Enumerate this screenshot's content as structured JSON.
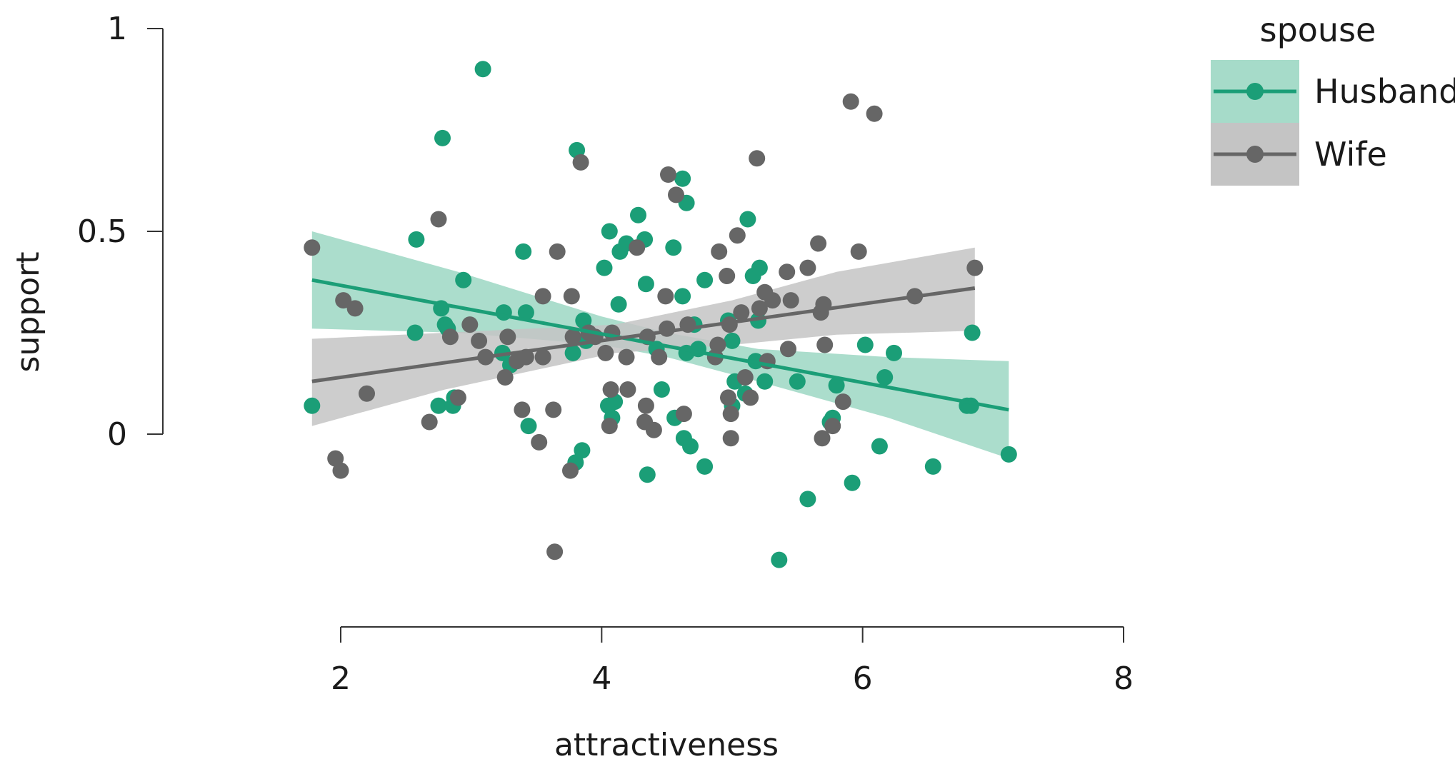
{
  "chart_data": {
    "type": "scatter",
    "title": "",
    "xlabel": "attractiveness",
    "ylabel": "support",
    "xlim": [
      1.3,
      8
    ],
    "ylim": [
      -0.45,
      1
    ],
    "x_ticks": [
      2,
      4,
      6,
      8
    ],
    "x_tick_labels": [
      "2",
      "4",
      "6",
      "8"
    ],
    "y_ticks": [
      0,
      0.5,
      1
    ],
    "y_tick_labels": [
      "0",
      "0.5",
      "1"
    ],
    "grid": false,
    "legend": {
      "title": "spouse",
      "placement": "top-right",
      "entries": [
        "Husband",
        "Wife"
      ]
    },
    "series": [
      {
        "name": "Husband",
        "color": "#1b9e77",
        "band_color": "#a6dbc9",
        "fit": {
          "x": [
            1.78,
            7.12
          ],
          "y": [
            0.38,
            0.06
          ]
        },
        "band": {
          "x": [
            1.78,
            2.9,
            4.0,
            4.5,
            5.2,
            6.2,
            7.12
          ],
          "upper": [
            0.5,
            0.4,
            0.29,
            0.25,
            0.21,
            0.19,
            0.18
          ],
          "lower": [
            0.26,
            0.25,
            0.22,
            0.19,
            0.13,
            0.04,
            -0.06
          ]
        },
        "points": [
          [
            1.78,
            0.07
          ],
          [
            2.58,
            0.48
          ],
          [
            2.57,
            0.25
          ],
          [
            2.77,
            0.31
          ],
          [
            2.78,
            0.73
          ],
          [
            2.8,
            0.27
          ],
          [
            2.82,
            0.26
          ],
          [
            2.75,
            0.07
          ],
          [
            2.86,
            0.07
          ],
          [
            2.87,
            0.09
          ],
          [
            2.94,
            0.38
          ],
          [
            3.09,
            0.9
          ],
          [
            3.25,
            0.3
          ],
          [
            3.24,
            0.2
          ],
          [
            3.3,
            0.17
          ],
          [
            3.4,
            0.45
          ],
          [
            3.42,
            0.3
          ],
          [
            3.44,
            0.02
          ],
          [
            3.81,
            0.7
          ],
          [
            3.8,
            -0.07
          ],
          [
            3.85,
            -0.04
          ],
          [
            3.86,
            0.28
          ],
          [
            3.88,
            0.23
          ],
          [
            3.78,
            0.2
          ],
          [
            4.02,
            0.41
          ],
          [
            4.06,
            0.5
          ],
          [
            4.05,
            0.07
          ],
          [
            4.08,
            0.04
          ],
          [
            4.1,
            0.08
          ],
          [
            4.13,
            0.32
          ],
          [
            4.14,
            0.45
          ],
          [
            4.19,
            0.47
          ],
          [
            4.28,
            0.54
          ],
          [
            4.33,
            0.48
          ],
          [
            4.34,
            0.37
          ],
          [
            4.35,
            -0.1
          ],
          [
            4.42,
            0.21
          ],
          [
            4.46,
            0.11
          ],
          [
            4.55,
            0.46
          ],
          [
            4.56,
            0.04
          ],
          [
            4.62,
            0.63
          ],
          [
            4.62,
            0.34
          ],
          [
            4.65,
            0.57
          ],
          [
            4.63,
            -0.01
          ],
          [
            4.65,
            0.2
          ],
          [
            4.68,
            -0.03
          ],
          [
            4.71,
            0.27
          ],
          [
            4.74,
            0.21
          ],
          [
            4.79,
            0.38
          ],
          [
            4.79,
            -0.08
          ],
          [
            4.97,
            0.28
          ],
          [
            5.0,
            0.07
          ],
          [
            5.02,
            0.13
          ],
          [
            5.0,
            0.23
          ],
          [
            5.1,
            0.1
          ],
          [
            5.12,
            0.53
          ],
          [
            5.16,
            0.39
          ],
          [
            5.21,
            0.41
          ],
          [
            5.2,
            0.28
          ],
          [
            5.18,
            0.18
          ],
          [
            5.25,
            0.13
          ],
          [
            5.36,
            -0.31
          ],
          [
            5.5,
            0.13
          ],
          [
            5.58,
            -0.16
          ],
          [
            5.75,
            0.03
          ],
          [
            5.77,
            0.04
          ],
          [
            5.8,
            0.12
          ],
          [
            5.92,
            -0.12
          ],
          [
            6.02,
            0.22
          ],
          [
            6.13,
            -0.03
          ],
          [
            6.17,
            0.14
          ],
          [
            6.24,
            0.2
          ],
          [
            6.54,
            -0.08
          ],
          [
            6.8,
            0.07
          ],
          [
            6.83,
            0.07
          ],
          [
            6.84,
            0.25
          ],
          [
            7.12,
            -0.05
          ]
        ]
      },
      {
        "name": "Wife",
        "color": "#666666",
        "band_color": "#c4c4c4",
        "fit": {
          "x": [
            1.78,
            6.86
          ],
          "y": [
            0.13,
            0.36
          ]
        },
        "band": {
          "x": [
            1.78,
            2.8,
            4.1,
            5.0,
            5.8,
            6.86
          ],
          "upper": [
            0.235,
            0.25,
            0.27,
            0.33,
            0.4,
            0.46
          ],
          "lower": [
            0.02,
            0.11,
            0.2,
            0.22,
            0.245,
            0.255
          ]
        },
        "points": [
          [
            1.78,
            0.46
          ],
          [
            1.96,
            -0.06
          ],
          [
            2.0,
            -0.09
          ],
          [
            2.02,
            0.33
          ],
          [
            2.11,
            0.31
          ],
          [
            2.2,
            0.1
          ],
          [
            2.68,
            0.03
          ],
          [
            2.75,
            0.53
          ],
          [
            2.84,
            0.24
          ],
          [
            2.9,
            0.09
          ],
          [
            2.99,
            0.27
          ],
          [
            3.06,
            0.23
          ],
          [
            3.11,
            0.19
          ],
          [
            3.26,
            0.14
          ],
          [
            3.28,
            0.24
          ],
          [
            3.35,
            0.18
          ],
          [
            3.39,
            0.06
          ],
          [
            3.42,
            0.19
          ],
          [
            3.52,
            -0.02
          ],
          [
            3.55,
            0.34
          ],
          [
            3.55,
            0.19
          ],
          [
            3.63,
            0.06
          ],
          [
            3.64,
            -0.29
          ],
          [
            3.66,
            0.45
          ],
          [
            3.76,
            -0.09
          ],
          [
            3.77,
            0.34
          ],
          [
            3.78,
            0.24
          ],
          [
            3.84,
            0.67
          ],
          [
            3.9,
            0.25
          ],
          [
            3.95,
            0.24
          ],
          [
            4.03,
            0.2
          ],
          [
            4.06,
            0.02
          ],
          [
            4.07,
            0.11
          ],
          [
            4.08,
            0.25
          ],
          [
            4.2,
            0.11
          ],
          [
            4.19,
            0.19
          ],
          [
            4.27,
            0.46
          ],
          [
            4.33,
            0.03
          ],
          [
            4.34,
            0.07
          ],
          [
            4.35,
            0.24
          ],
          [
            4.4,
            0.01
          ],
          [
            4.44,
            0.19
          ],
          [
            4.49,
            0.34
          ],
          [
            4.5,
            0.26
          ],
          [
            4.51,
            0.64
          ],
          [
            4.57,
            0.59
          ],
          [
            4.63,
            0.05
          ],
          [
            4.66,
            0.27
          ],
          [
            4.87,
            0.19
          ],
          [
            4.89,
            0.22
          ],
          [
            4.9,
            0.45
          ],
          [
            4.96,
            0.39
          ],
          [
            4.97,
            0.09
          ],
          [
            4.99,
            -0.01
          ],
          [
            4.99,
            0.05
          ],
          [
            4.98,
            0.27
          ],
          [
            5.04,
            0.49
          ],
          [
            5.07,
            0.3
          ],
          [
            5.1,
            0.14
          ],
          [
            5.14,
            0.09
          ],
          [
            5.19,
            0.68
          ],
          [
            5.21,
            0.31
          ],
          [
            5.25,
            0.35
          ],
          [
            5.27,
            0.18
          ],
          [
            5.31,
            0.33
          ],
          [
            5.42,
            0.4
          ],
          [
            5.43,
            0.21
          ],
          [
            5.45,
            0.33
          ],
          [
            5.58,
            0.41
          ],
          [
            5.66,
            0.47
          ],
          [
            5.68,
            0.3
          ],
          [
            5.69,
            -0.01
          ],
          [
            5.7,
            0.32
          ],
          [
            5.71,
            0.22
          ],
          [
            5.77,
            0.02
          ],
          [
            5.85,
            0.08
          ],
          [
            5.91,
            0.82
          ],
          [
            5.97,
            0.45
          ],
          [
            6.09,
            0.79
          ],
          [
            6.4,
            0.34
          ],
          [
            6.86,
            0.41
          ]
        ]
      }
    ]
  }
}
